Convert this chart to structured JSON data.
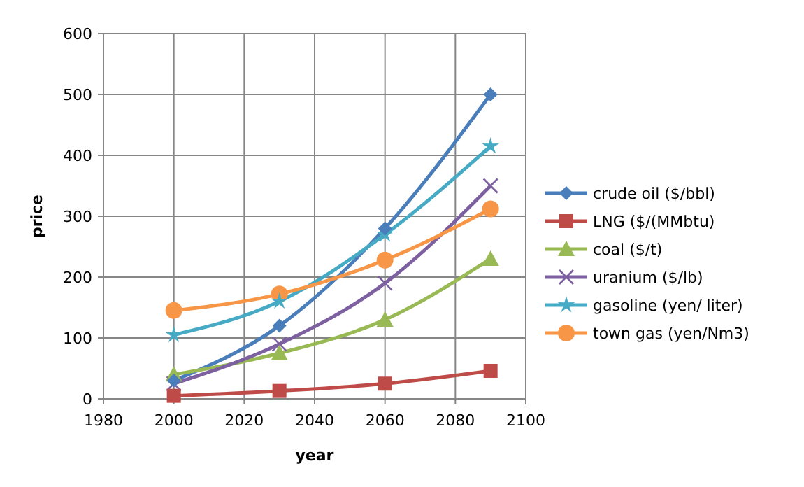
{
  "chart_data": {
    "type": "line",
    "xlabel": "year",
    "ylabel": "price",
    "x": [
      2000,
      2030,
      2060,
      2090
    ],
    "xlim": [
      1980,
      2100
    ],
    "xticks": [
      1980,
      2000,
      2020,
      2040,
      2060,
      2080,
      2100
    ],
    "ylim": [
      0,
      600
    ],
    "yticks": [
      0,
      100,
      200,
      300,
      400,
      500,
      600
    ],
    "grid": true,
    "legend": "right",
    "line_style": "solid",
    "series": [
      {
        "name": "crude oil ($/bbl)",
        "color": "#4a7ebb",
        "marker": "diamond",
        "values": [
          30,
          120,
          280,
          500
        ]
      },
      {
        "name": "LNG ($/(MMbtu)",
        "color": "#be4b48",
        "marker": "square",
        "values": [
          5,
          13,
          25,
          46
        ]
      },
      {
        "name": "coal ($/t)",
        "color": "#98b954",
        "marker": "triangle",
        "values": [
          40,
          75,
          130,
          230
        ]
      },
      {
        "name": "uranium ($/lb)",
        "color": "#7d60a0",
        "marker": "cross",
        "values": [
          25,
          90,
          190,
          350
        ]
      },
      {
        "name": "gasoline (yen/ liter)",
        "color": "#46aac5",
        "marker": "star",
        "values": [
          105,
          160,
          270,
          415
        ]
      },
      {
        "name": "town gas (yen/Nm3)",
        "color": "#f79646",
        "marker": "circle",
        "values": [
          145,
          172,
          228,
          312
        ]
      }
    ]
  }
}
